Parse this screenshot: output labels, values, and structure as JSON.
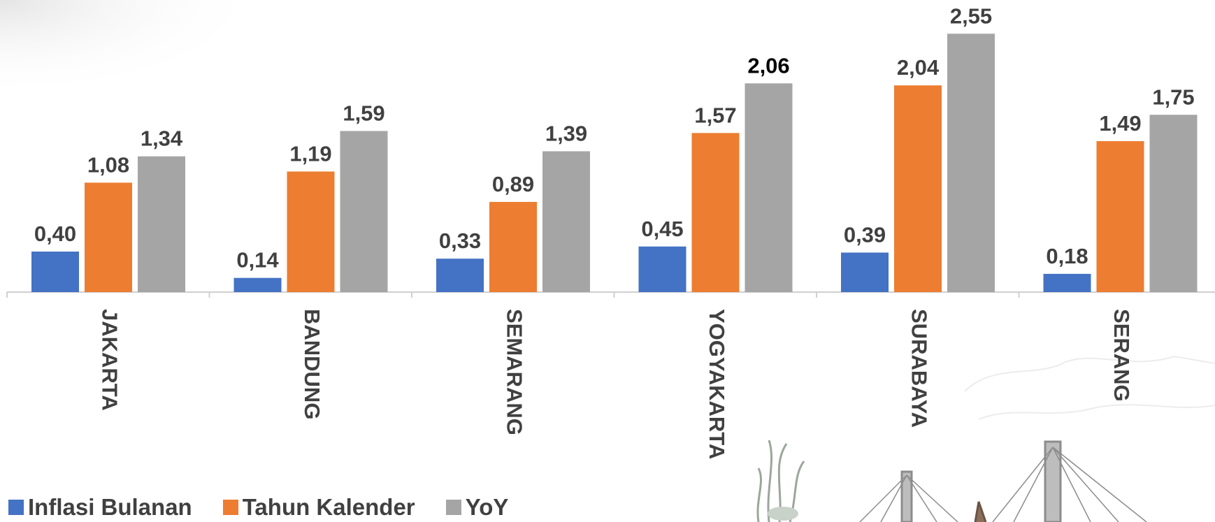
{
  "chart_data": {
    "type": "bar",
    "categories": [
      "JAKARTA",
      "BANDUNG",
      "SEMARANG",
      "YOGYAKARTA",
      "SURABAYA",
      "SERANG"
    ],
    "series": [
      {
        "name": "Inflasi Bulanan",
        "color": "#4472c4",
        "values": [
          0.4,
          0.14,
          0.33,
          0.45,
          0.39,
          0.18
        ],
        "labels": [
          "0,40",
          "0,14",
          "0,33",
          "0,45",
          "0,39",
          "0,18"
        ]
      },
      {
        "name": "Tahun Kalender",
        "color": "#ed7d31",
        "values": [
          1.08,
          1.19,
          0.89,
          1.57,
          2.04,
          1.49
        ],
        "labels": [
          "1,08",
          "1,19",
          "0,89",
          "1,57",
          "2,04",
          "1,49"
        ]
      },
      {
        "name": "YoY",
        "color": "#a5a5a5",
        "values": [
          1.34,
          1.59,
          1.39,
          2.06,
          2.55,
          1.75
        ],
        "labels": [
          "1,34",
          "1,59",
          "1,39",
          "2,06",
          "2,55",
          "1,75"
        ]
      }
    ],
    "ylim": [
      0,
      2.55
    ],
    "grid": false,
    "legend_position": "bottom-left",
    "category_label_rotation": "vertical"
  },
  "decor": {
    "background_illustration": "bridge-and-monument-sketch"
  }
}
